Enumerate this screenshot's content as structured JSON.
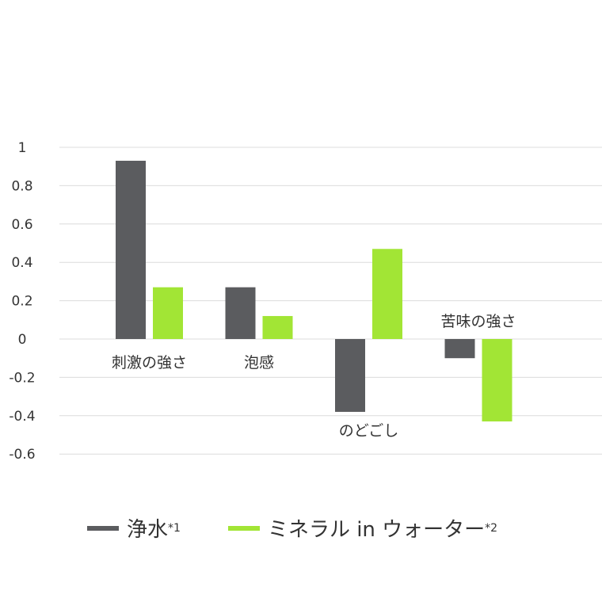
{
  "chart_data": {
    "type": "bar",
    "categories": [
      "刺激の強さ",
      "泡感",
      "のどごし",
      "苦味の強さ"
    ],
    "series": [
      {
        "name": "浄水",
        "name_sup": "*1",
        "color": "#5b5c5f",
        "values": [
          0.93,
          0.27,
          -0.38,
          -0.1
        ]
      },
      {
        "name": "ミネラル in ウォーター",
        "name_sup": "*2",
        "color": "#a2e535",
        "values": [
          0.27,
          0.12,
          0.47,
          -0.43
        ]
      }
    ],
    "yticks": [
      "1",
      "0.8",
      "0.6",
      "0.4",
      "0.2",
      "0",
      "-0.2",
      "-0.4",
      "-0.6"
    ],
    "ylim": [
      -0.6,
      1.0
    ],
    "grid": true,
    "legend_position": "bottom"
  }
}
